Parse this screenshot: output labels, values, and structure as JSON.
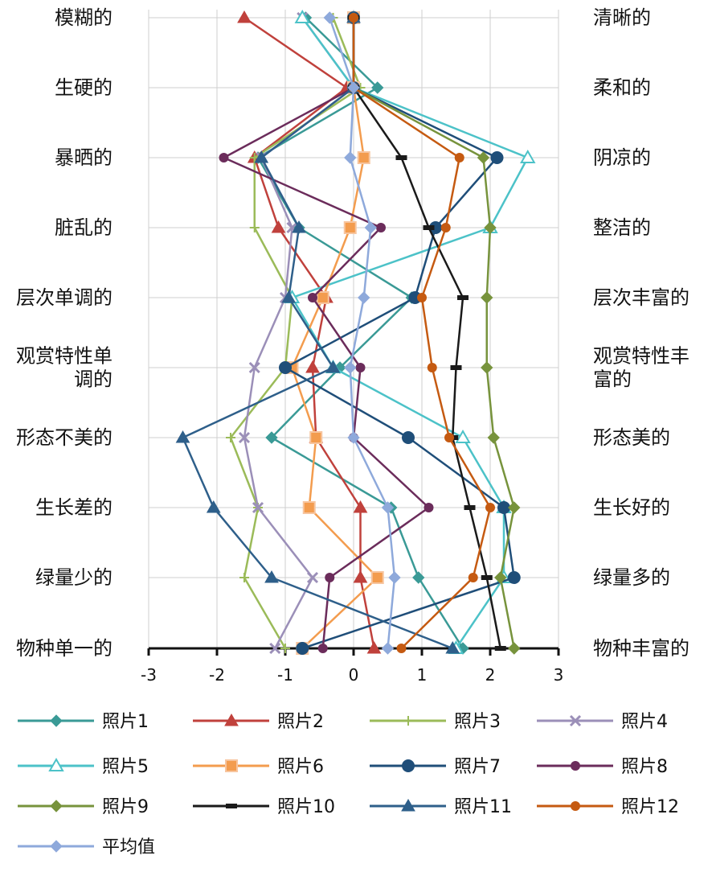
{
  "chart_data": {
    "type": "line",
    "orientation": "horizontal-profile",
    "title": "",
    "xlabel": "",
    "ylabel": "",
    "xlim": [
      -3,
      3
    ],
    "xticks": [
      "-3",
      "-2",
      "-1",
      "0",
      "1",
      "2",
      "3"
    ],
    "grid": true,
    "legend_position": "bottom",
    "left_labels": [
      "模糊的",
      "生硬的",
      "暴晒的",
      "脏乱的",
      "层次单调的",
      "观赏特性单调的",
      "形态不美的",
      "生长差的",
      "绿量少的",
      "物种单一的"
    ],
    "left_label_lines": [
      [
        "模糊的"
      ],
      [
        "生硬的"
      ],
      [
        "暴晒的"
      ],
      [
        "脏乱的"
      ],
      [
        "层次单调的"
      ],
      [
        "观赏特性单",
        "调的"
      ],
      [
        "形态不美的"
      ],
      [
        "生长差的"
      ],
      [
        "绿量少的"
      ],
      [
        "物种单一的"
      ]
    ],
    "right_labels": [
      "清晰的",
      "柔和的",
      "阴凉的",
      "整洁的",
      "层次丰富的",
      "观赏特性丰富的",
      "形态美的",
      "生长好的",
      "绿量多的",
      "物种丰富的"
    ],
    "right_label_lines": [
      [
        "清晰的"
      ],
      [
        "柔和的"
      ],
      [
        "阴凉的"
      ],
      [
        "整洁的"
      ],
      [
        "层次丰富的"
      ],
      [
        "观赏特性丰",
        "富的"
      ],
      [
        "形态美的"
      ],
      [
        "生长好的"
      ],
      [
        "绿量多的"
      ],
      [
        "物种丰富的"
      ]
    ],
    "series": [
      {
        "name": "照片1",
        "color": "#3a9a96",
        "marker": "diamond",
        "values": [
          -0.7,
          0.35,
          -1.4,
          -0.8,
          0.85,
          -0.2,
          -1.2,
          0.55,
          0.95,
          1.6
        ]
      },
      {
        "name": "照片2",
        "color": "#c0413c",
        "marker": "triangle",
        "values": [
          -1.6,
          -0.1,
          -1.45,
          -1.1,
          -0.4,
          -0.6,
          -0.55,
          0.1,
          0.1,
          0.3
        ]
      },
      {
        "name": "照片3",
        "color": "#9bbb59",
        "marker": "plus",
        "values": [
          -0.3,
          0.1,
          -1.45,
          -1.45,
          -0.9,
          -1.0,
          -1.8,
          -1.4,
          -1.6,
          -1.0
        ]
      },
      {
        "name": "照片4",
        "color": "#9b8fb8",
        "marker": "x",
        "values": [
          -0.75,
          0.0,
          -1.35,
          -0.9,
          -1.0,
          -1.45,
          -1.6,
          -1.4,
          -0.6,
          -1.15
        ]
      },
      {
        "name": "照片5",
        "color": "#4cc2c8",
        "marker": "triangle-open",
        "values": [
          -0.75,
          0.0,
          2.55,
          2.0,
          -0.9,
          -0.3,
          1.6,
          2.2,
          2.2,
          1.5
        ]
      },
      {
        "name": "照片6",
        "color": "#f39c4e",
        "marker": "square",
        "values": [
          0.0,
          0.0,
          0.15,
          -0.05,
          -0.45,
          -0.9,
          -0.55,
          -0.65,
          0.35,
          -0.75
        ]
      },
      {
        "name": "照片7",
        "color": "#1f4e79",
        "marker": "circle",
        "values": [
          0.0,
          0.0,
          2.1,
          1.2,
          0.9,
          -1.0,
          0.8,
          2.2,
          2.35,
          -0.75
        ]
      },
      {
        "name": "照片8",
        "color": "#6b2c5b",
        "marker": "circle-small",
        "values": [
          0.0,
          0.0,
          -1.9,
          0.4,
          -0.6,
          0.1,
          0.0,
          1.1,
          -0.35,
          -0.45
        ]
      },
      {
        "name": "照片9",
        "color": "#77933c",
        "marker": "diamond",
        "values": [
          0.0,
          0.0,
          1.9,
          2.0,
          1.95,
          1.95,
          2.05,
          2.35,
          2.15,
          2.35
        ]
      },
      {
        "name": "照片10",
        "color": "#1a1a1a",
        "marker": "dash",
        "values": [
          0.0,
          0.0,
          0.7,
          1.1,
          1.6,
          1.5,
          1.45,
          1.7,
          1.95,
          2.15
        ]
      },
      {
        "name": "照片11",
        "color": "#2e5f8a",
        "marker": "triangle",
        "values": [
          0.0,
          0.0,
          -1.35,
          -0.8,
          -0.95,
          -0.3,
          -2.5,
          -2.05,
          -1.2,
          1.45
        ]
      },
      {
        "name": "照片12",
        "color": "#c55a11",
        "marker": "circle-small",
        "values": [
          0.0,
          0.0,
          1.55,
          1.35,
          1.0,
          1.15,
          1.4,
          2.0,
          1.75,
          0.7
        ]
      },
      {
        "name": "平均值",
        "color": "#8ea9db",
        "marker": "diamond",
        "values": [
          -0.35,
          0.0,
          -0.05,
          0.25,
          0.15,
          -0.05,
          0.0,
          0.5,
          0.6,
          0.5
        ]
      }
    ]
  }
}
